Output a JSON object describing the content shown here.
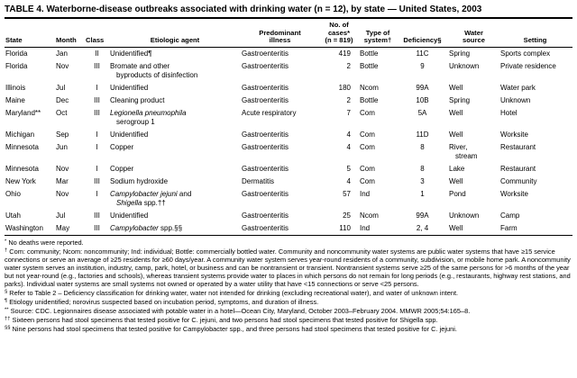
{
  "title": "TABLE 4. Waterborne-disease outbreaks associated with drinking water (n = 12), by state — United States, 2003",
  "columns": [
    {
      "lines": [
        "State"
      ]
    },
    {
      "lines": [
        "Month"
      ]
    },
    {
      "lines": [
        "Class"
      ]
    },
    {
      "lines": [
        "Etiologic agent"
      ]
    },
    {
      "lines": [
        "Predominant",
        "illness"
      ]
    },
    {
      "lines": [
        "No. of",
        "cases*",
        "(n = 819)"
      ]
    },
    {
      "lines": [
        "Type of",
        "system†"
      ]
    },
    {
      "lines": [
        "Deficiency§"
      ]
    },
    {
      "lines": [
        "Water",
        "source"
      ]
    },
    {
      "lines": [
        "Setting"
      ]
    }
  ],
  "rows": [
    {
      "state": "Florida",
      "month": "Jan",
      "class": "II",
      "agent_n1": "Unidentified¶",
      "illness": "Gastroenteritis",
      "cases": "419",
      "system": "Bottle",
      "deficiency": "11C",
      "source1": "Spring",
      "setting": "Sports complex"
    },
    {
      "state": "Florida",
      "month": "Nov",
      "class": "III",
      "agent_n1": "Bromate and other",
      "agent_n2": "byproducts of disinfection",
      "illness": "Gastroenteritis",
      "cases": "2",
      "system": "Bottle",
      "deficiency": "9",
      "source1": "Unknown",
      "setting": "Private residence"
    },
    {
      "state": "Illinois",
      "month": "Jul",
      "class": "I",
      "agent_n1": "Unidentified",
      "illness": "Gastroenteritis",
      "cases": "180",
      "system": "Ncom",
      "deficiency": "99A",
      "source1": "Well",
      "setting": "Water park"
    },
    {
      "state": "Maine",
      "month": "Dec",
      "class": "III",
      "agent_n1": "Cleaning product",
      "illness": "Gastroenteritis",
      "cases": "2",
      "system": "Bottle",
      "deficiency": "10B",
      "source1": "Spring",
      "setting": "Unknown"
    },
    {
      "state": "Maryland**",
      "month": "Oct",
      "class": "III",
      "agent_i1": "Legionella pneumophila",
      "agent_n2": "serogroup 1",
      "illness": "Acute respiratory",
      "cases": "7",
      "system": "Com",
      "deficiency": "5A",
      "source1": "Well",
      "setting": "Hotel"
    },
    {
      "state": "Michigan",
      "month": "Sep",
      "class": "I",
      "agent_n1": "Unidentified",
      "illness": "Gastroenteritis",
      "cases": "4",
      "system": "Com",
      "deficiency": "11D",
      "source1": "Well",
      "setting": "Worksite"
    },
    {
      "state": "Minnesota",
      "month": "Jun",
      "class": "I",
      "agent_n1": "Copper",
      "illness": "Gastroenteritis",
      "cases": "4",
      "system": "Com",
      "deficiency": "8",
      "source1": "River,",
      "source2": "stream",
      "setting": "Restaurant"
    },
    {
      "state": "Minnesota",
      "month": "Nov",
      "class": "I",
      "agent_n1": "Copper",
      "illness": "Gastroenteritis",
      "cases": "5",
      "system": "Com",
      "deficiency": "8",
      "source1": "Lake",
      "setting": "Restaurant"
    },
    {
      "state": "New York",
      "month": "Mar",
      "class": "III",
      "agent_n1": "Sodium hydroxide",
      "illness": "Dermatitis",
      "cases": "4",
      "system": "Com",
      "deficiency": "3",
      "source1": "Well",
      "setting": "Community"
    },
    {
      "state": "Ohio",
      "month": "Nov",
      "class": "I",
      "agent_i1": "Campylobacter jejuni",
      "agent_n1": " and",
      "agent_i2": "Shigella",
      "agent_n2": " spp.††",
      "illness": "Gastroenteritis",
      "cases": "57",
      "system": "Ind",
      "deficiency": "1",
      "source1": "Pond",
      "setting": "Worksite"
    },
    {
      "state": "Utah",
      "month": "Jul",
      "class": "III",
      "agent_n1": "Unidentified",
      "illness": "Gastroenteritis",
      "cases": "25",
      "system": "Ncom",
      "deficiency": "99A",
      "source1": "Unknown",
      "setting": "Camp"
    },
    {
      "state": "Washington",
      "month": "May",
      "class": "III",
      "agent_i1": "Campylobacter",
      "agent_n1": " spp.§§",
      "illness": "Gastroenteritis",
      "cases": "110",
      "system": "Ind",
      "deficiency": "2, 4",
      "source1": "Well",
      "setting": "Farm"
    }
  ],
  "footnotes": [
    {
      "symbol": "*",
      "text": "No deaths were reported."
    },
    {
      "symbol": "†",
      "text": "Com: community; Ncom: noncommunity; Ind: individual; Bottle: commercially bottled water. Community and noncommunity water systems are public water systems that have ≥15 service connections or serve an average of ≥25 residents for ≥60 days/year. A community water system serves year-round residents of a community, subdivision, or mobile home park. A noncommunity water system serves an institution, industry, camp, park, hotel, or business and can be nontransient or transient. Nontransient systems serve ≥25 of the same persons for >6 months of the year but not year-round (e.g., factories and schools), whereas transient systems provide water to places in which persons do not remain for long periods (e.g., restaurants, highway rest stations, and parks). Individual water systems are small systems not owned or operated by a water utility that have <15 connections or serve <25 persons."
    },
    {
      "symbol": "§",
      "text": "Refer to Table 2 – Deficiency classification for drinking water, water not intended for drinking (excluding recreational water), and water of unknown intent."
    },
    {
      "symbol": "¶",
      "text": "Etiology unidentified; norovirus suspected based on incubation period, symptoms, and duration of illness."
    },
    {
      "symbol": "**",
      "text": "Source: CDC. Legionnaires disease associated with potable water in a hotel—Ocean City, Maryland, October 2003–February 2004. MMWR 2005;54:165–8."
    },
    {
      "symbol": "††",
      "text": "Sixteen persons had stool specimens that tested positive for C. jejuni, and two persons had stool specimens that tested positive for Shigella spp."
    },
    {
      "symbol": "§§",
      "text": "Nine persons had stool specimens that tested positive for Campylobacter spp., and three persons had stool specimens that tested positive for C. jejuni."
    }
  ]
}
